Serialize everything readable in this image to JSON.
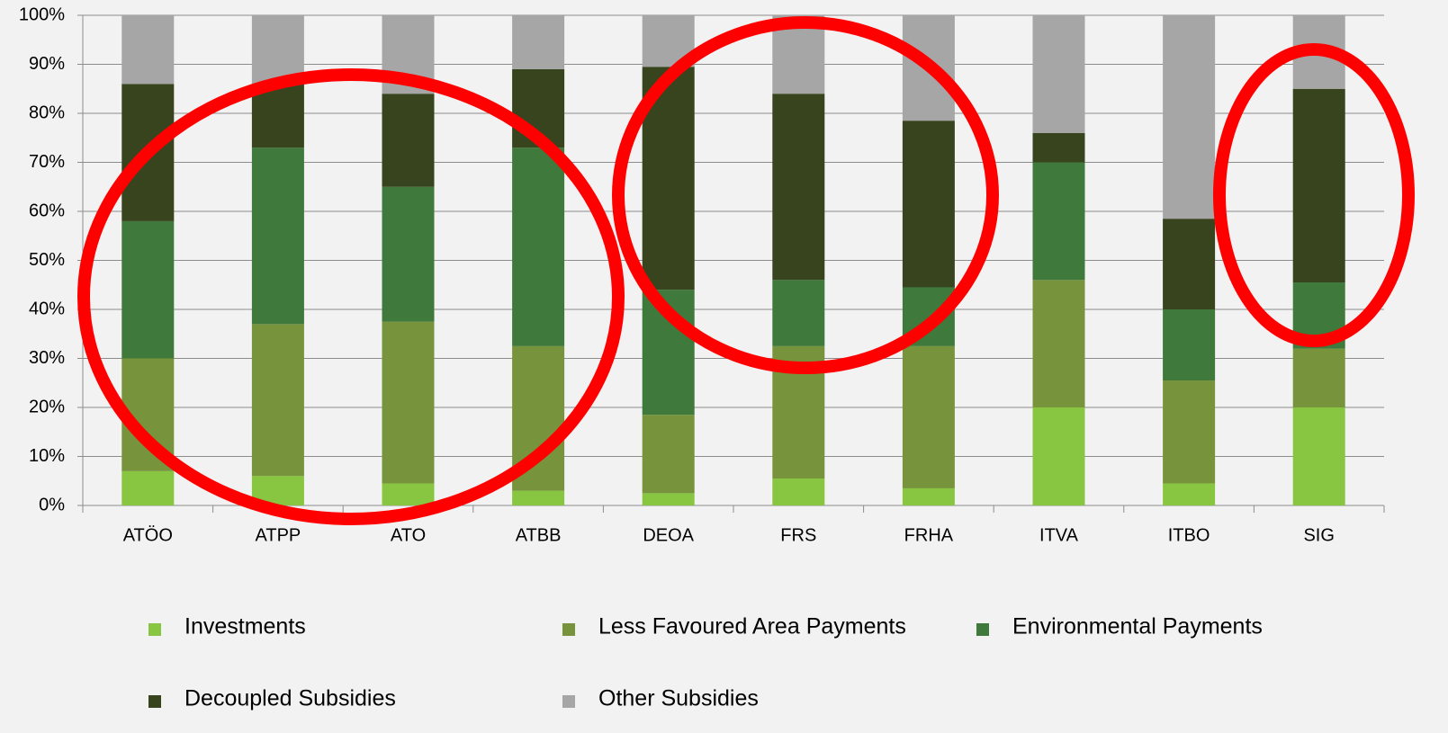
{
  "chart_data": {
    "type": "stacked_bar",
    "categories": [
      "ATÖO",
      "ATPP",
      "ATO",
      "ATBB",
      "DEOA",
      "FRS",
      "FRHA",
      "ITVA",
      "ITBO",
      "SIG"
    ],
    "series": [
      {
        "name": "Investments",
        "color": "#88c540",
        "values": [
          7,
          6,
          4.5,
          3,
          2.5,
          5.5,
          3.5,
          20,
          4.5,
          20
        ]
      },
      {
        "name": "Less Favoured Area Payments",
        "color": "#77933c",
        "values": [
          23,
          31,
          33,
          29.5,
          16,
          27,
          29,
          26,
          21,
          12
        ]
      },
      {
        "name": "Environmental Payments",
        "color": "#3f7a3c",
        "values": [
          28,
          36,
          27.5,
          40.5,
          25.5,
          13.5,
          12,
          24,
          14.5,
          13.5
        ]
      },
      {
        "name": "Decoupled Subsidies",
        "color": "#37441e",
        "values": [
          28,
          13,
          19,
          16,
          45.5,
          38,
          34,
          6,
          18.5,
          39.5
        ]
      },
      {
        "name": "Other Subsidies",
        "color": "#a6a6a6",
        "values": [
          14,
          14,
          16,
          11,
          10.5,
          16,
          21.5,
          24,
          41.5,
          15
        ]
      }
    ],
    "ylim": [
      0,
      100
    ],
    "yticks": [
      {
        "value": 0,
        "label": "0%"
      },
      {
        "value": 10,
        "label": "10%"
      },
      {
        "value": 20,
        "label": "20%"
      },
      {
        "value": 30,
        "label": "30%"
      },
      {
        "value": 40,
        "label": "40%"
      },
      {
        "value": 50,
        "label": "50%"
      },
      {
        "value": 60,
        "label": "60%"
      },
      {
        "value": 70,
        "label": "70%"
      },
      {
        "value": 80,
        "label": "80%"
      },
      {
        "value": 90,
        "label": "90%"
      },
      {
        "value": 100,
        "label": "100%"
      }
    ],
    "grid": true
  }
}
